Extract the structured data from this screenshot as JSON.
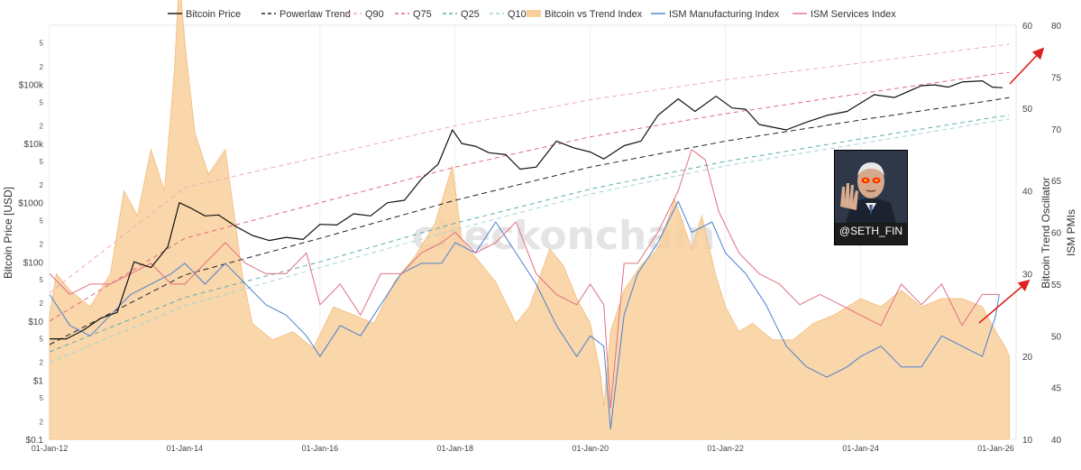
{
  "chart_data": {
    "type": "line",
    "legend": [
      "Bitcoin Price",
      "Powerlaw Trend",
      "Q90",
      "Q75",
      "Q25",
      "Q10",
      "Bitcoin vs Trend Index",
      "ISM Manufacturing Index",
      "ISM Services Index"
    ],
    "legend_placement": "top",
    "ylabel_left": "Bitcoin Price [USD]",
    "ylabel_right1": "Bitcoin Trend Oscillator",
    "ylabel_right2": "ISM PMIs",
    "watermark": "checkonchain",
    "handle": "@SETH_FIN",
    "x_ticks": [
      "01-Jan-12",
      "01-Jan-14",
      "01-Jan-16",
      "01-Jan-18",
      "01-Jan-20",
      "01-Jan-22",
      "01-Jan-24",
      "01-Jan-26"
    ],
    "y_left_ticks": [
      "$0.1",
      "$1",
      "$10",
      "$100",
      "$1000",
      "$10k",
      "$100k"
    ],
    "y_left_minor": [
      "2",
      "5",
      "2",
      "5",
      "2",
      "5",
      "2",
      "5",
      "2",
      "5",
      "2",
      "5",
      "2",
      "5"
    ],
    "y_left_scale": "log",
    "y_left_range": [
      0.1,
      1000000
    ],
    "y_osc_ticks": [
      "10",
      "20",
      "30",
      "40",
      "50",
      "60"
    ],
    "y_osc_range": [
      10,
      60
    ],
    "y_ism_ticks": [
      "40",
      "45",
      "50",
      "55",
      "60",
      "65",
      "70",
      "75",
      "80"
    ],
    "y_ism_range": [
      40,
      80
    ],
    "x_range": [
      2012.0,
      2026.3
    ],
    "series": [
      {
        "name": "Bitcoin Price",
        "color": "#111111",
        "axis": "left",
        "x": [
          2012.0,
          2012.25,
          2012.5,
          2012.75,
          2013.0,
          2013.25,
          2013.5,
          2013.75,
          2013.92,
          2014.1,
          2014.3,
          2014.5,
          2014.75,
          2015.0,
          2015.25,
          2015.5,
          2015.75,
          2016.0,
          2016.25,
          2016.5,
          2016.75,
          2017.0,
          2017.25,
          2017.5,
          2017.75,
          2017.96,
          2018.1,
          2018.3,
          2018.5,
          2018.75,
          2018.96,
          2019.2,
          2019.5,
          2019.75,
          2020.0,
          2020.2,
          2020.5,
          2020.75,
          2021.0,
          2021.3,
          2021.55,
          2021.86,
          2022.1,
          2022.3,
          2022.5,
          2022.9,
          2023.2,
          2023.5,
          2023.8,
          2024.2,
          2024.5,
          2024.9,
          2025.1,
          2025.3,
          2025.5,
          2025.8,
          2025.95,
          2026.1
        ],
        "y": [
          5,
          5,
          7,
          11,
          14,
          100,
          80,
          180,
          1000,
          800,
          600,
          620,
          400,
          280,
          230,
          260,
          240,
          430,
          420,
          650,
          600,
          1000,
          1100,
          2500,
          4500,
          17000,
          10000,
          9000,
          7000,
          6500,
          3700,
          4000,
          11000,
          8500,
          7200,
          5500,
          9200,
          11000,
          30000,
          57000,
          35000,
          63000,
          40000,
          38000,
          21000,
          17000,
          23000,
          30000,
          35000,
          67000,
          60000,
          95000,
          98000,
          90000,
          110000,
          115000,
          90000,
          88000
        ]
      },
      {
        "name": "Powerlaw Trend",
        "color": "#222222",
        "axis": "left",
        "dash": "6,4",
        "x": [
          2012.0,
          2014.0,
          2016.0,
          2018.0,
          2020.0,
          2022.0,
          2024.0,
          2026.0,
          2026.2
        ],
        "y": [
          4,
          60,
          250,
          1100,
          4000,
          11000,
          25000,
          55000,
          60000
        ]
      },
      {
        "name": "Q90",
        "color": "#f2a8b8",
        "axis": "left",
        "dash": "5,4",
        "x": [
          2012.0,
          2014.0,
          2016.0,
          2018.0,
          2020.0,
          2022.0,
          2024.0,
          2026.0,
          2026.2
        ],
        "y": [
          30,
          1800,
          6000,
          20000,
          55000,
          120000,
          230000,
          450000,
          480000
        ]
      },
      {
        "name": "Q75",
        "color": "#e06a7e",
        "axis": "left",
        "dash": "5,4",
        "x": [
          2012.0,
          2014.0,
          2016.0,
          2018.0,
          2020.0,
          2022.0,
          2024.0,
          2026.0,
          2026.2
        ],
        "y": [
          10,
          250,
          1000,
          4000,
          13000,
          32000,
          70000,
          150000,
          160000
        ]
      },
      {
        "name": "Q25",
        "color": "#5ab0ae",
        "axis": "left",
        "dash": "5,4",
        "x": [
          2012.0,
          2014.0,
          2016.0,
          2018.0,
          2020.0,
          2022.0,
          2024.0,
          2026.0,
          2026.2
        ],
        "y": [
          3,
          25,
          100,
          450,
          1700,
          5000,
          12000,
          28000,
          30000
        ]
      },
      {
        "name": "Q10",
        "color": "#9fd7d0",
        "axis": "left",
        "dash": "5,4",
        "x": [
          2012.0,
          2014.0,
          2016.0,
          2018.0,
          2020.0,
          2022.0,
          2024.0,
          2026.0,
          2026.2
        ],
        "y": [
          2,
          18,
          80,
          350,
          1400,
          4200,
          10000,
          24000,
          26000
        ]
      },
      {
        "name": "Bitcoin vs Trend Index",
        "color": "#f9cf9c",
        "axis": "osc",
        "type": "area",
        "x": [
          2012.0,
          2012.1,
          2012.3,
          2012.6,
          2012.9,
          2013.1,
          2013.3,
          2013.5,
          2013.7,
          2013.85,
          2013.92,
          2014.0,
          2014.15,
          2014.35,
          2014.6,
          2014.85,
          2015.0,
          2015.3,
          2015.6,
          2015.9,
          2016.2,
          2016.5,
          2016.8,
          2017.1,
          2017.4,
          2017.7,
          2017.96,
          2018.1,
          2018.3,
          2018.6,
          2018.9,
          2019.1,
          2019.4,
          2019.6,
          2019.8,
          2020.0,
          2020.15,
          2020.2,
          2020.3,
          2020.5,
          2020.75,
          2021.0,
          2021.25,
          2021.5,
          2021.65,
          2021.85,
          2022.0,
          2022.2,
          2022.4,
          2022.7,
          2023.0,
          2023.3,
          2023.6,
          2024.0,
          2024.3,
          2024.6,
          2024.9,
          2025.2,
          2025.5,
          2025.8,
          2026.0,
          2026.15,
          2026.2
        ],
        "y": [
          25,
          30,
          28,
          26,
          30,
          40,
          37,
          45,
          40,
          55,
          66,
          58,
          47,
          42,
          45,
          30,
          24,
          22,
          23,
          21,
          26,
          25,
          24,
          29,
          32,
          36,
          43,
          34,
          32,
          29,
          24,
          26,
          33,
          31,
          27,
          24,
          18,
          14,
          23,
          28,
          31,
          33,
          39,
          33,
          37,
          30,
          26,
          23,
          24,
          22,
          22,
          24,
          25,
          27,
          26,
          28,
          26,
          27,
          27,
          26,
          23,
          21,
          20
        ]
      },
      {
        "name": "ISM Manufacturing Index",
        "color": "#4a80d0",
        "axis": "ism",
        "x": [
          2012.0,
          2012.3,
          2012.6,
          2012.9,
          2013.2,
          2013.5,
          2013.8,
          2014.0,
          2014.3,
          2014.6,
          2014.9,
          2015.2,
          2015.5,
          2015.8,
          2016.0,
          2016.3,
          2016.6,
          2016.9,
          2017.2,
          2017.5,
          2017.8,
          2018.0,
          2018.3,
          2018.6,
          2018.9,
          2019.2,
          2019.5,
          2019.8,
          2020.0,
          2020.2,
          2020.3,
          2020.5,
          2020.7,
          2021.0,
          2021.3,
          2021.5,
          2021.8,
          2022.0,
          2022.3,
          2022.6,
          2022.9,
          2023.2,
          2023.5,
          2023.8,
          2024.0,
          2024.3,
          2024.6,
          2024.9,
          2025.2,
          2025.5,
          2025.8,
          2026.0,
          2026.05
        ],
        "y": [
          54,
          51,
          50,
          52,
          54,
          55,
          56,
          57,
          55,
          57,
          55,
          53,
          52,
          50,
          48,
          51,
          50,
          53,
          56,
          57,
          57,
          59,
          58,
          61,
          58,
          55,
          51,
          48,
          50,
          49,
          41,
          52,
          56,
          59,
          63,
          60,
          61,
          58,
          56,
          53,
          49,
          47,
          46,
          47,
          48,
          49,
          47,
          47,
          50,
          49,
          48,
          52,
          54
        ]
      },
      {
        "name": "ISM Services Index",
        "color": "#e07080",
        "axis": "ism",
        "x": [
          2012.0,
          2012.3,
          2012.6,
          2012.9,
          2013.2,
          2013.5,
          2013.8,
          2014.0,
          2014.3,
          2014.6,
          2014.9,
          2015.2,
          2015.5,
          2015.8,
          2016.0,
          2016.3,
          2016.6,
          2016.9,
          2017.2,
          2017.5,
          2017.8,
          2018.0,
          2018.3,
          2018.6,
          2018.9,
          2019.2,
          2019.5,
          2019.8,
          2020.0,
          2020.2,
          2020.3,
          2020.5,
          2020.7,
          2021.0,
          2021.3,
          2021.5,
          2021.7,
          2021.9,
          2022.2,
          2022.5,
          2022.8,
          2023.1,
          2023.4,
          2023.7,
          2024.0,
          2024.3,
          2024.6,
          2024.9,
          2025.2,
          2025.5,
          2025.8,
          2025.95,
          2026.05
        ],
        "y": [
          56,
          54,
          55,
          55,
          56,
          57,
          55,
          55,
          57,
          59,
          57,
          56,
          56,
          58,
          53,
          55,
          52,
          56,
          56,
          58,
          59,
          60,
          58,
          59,
          61,
          56,
          54,
          53,
          55,
          53,
          43,
          57,
          57,
          60,
          64,
          68,
          67,
          62,
          58,
          56,
          55,
          53,
          54,
          53,
          52,
          51,
          55,
          53,
          55,
          51,
          54,
          54,
          54
        ]
      }
    ]
  },
  "annotations": {
    "arrow_color": "#dd2222",
    "arrow_price_target": "$100k",
    "arrow_ism_target": "ISM 55"
  }
}
